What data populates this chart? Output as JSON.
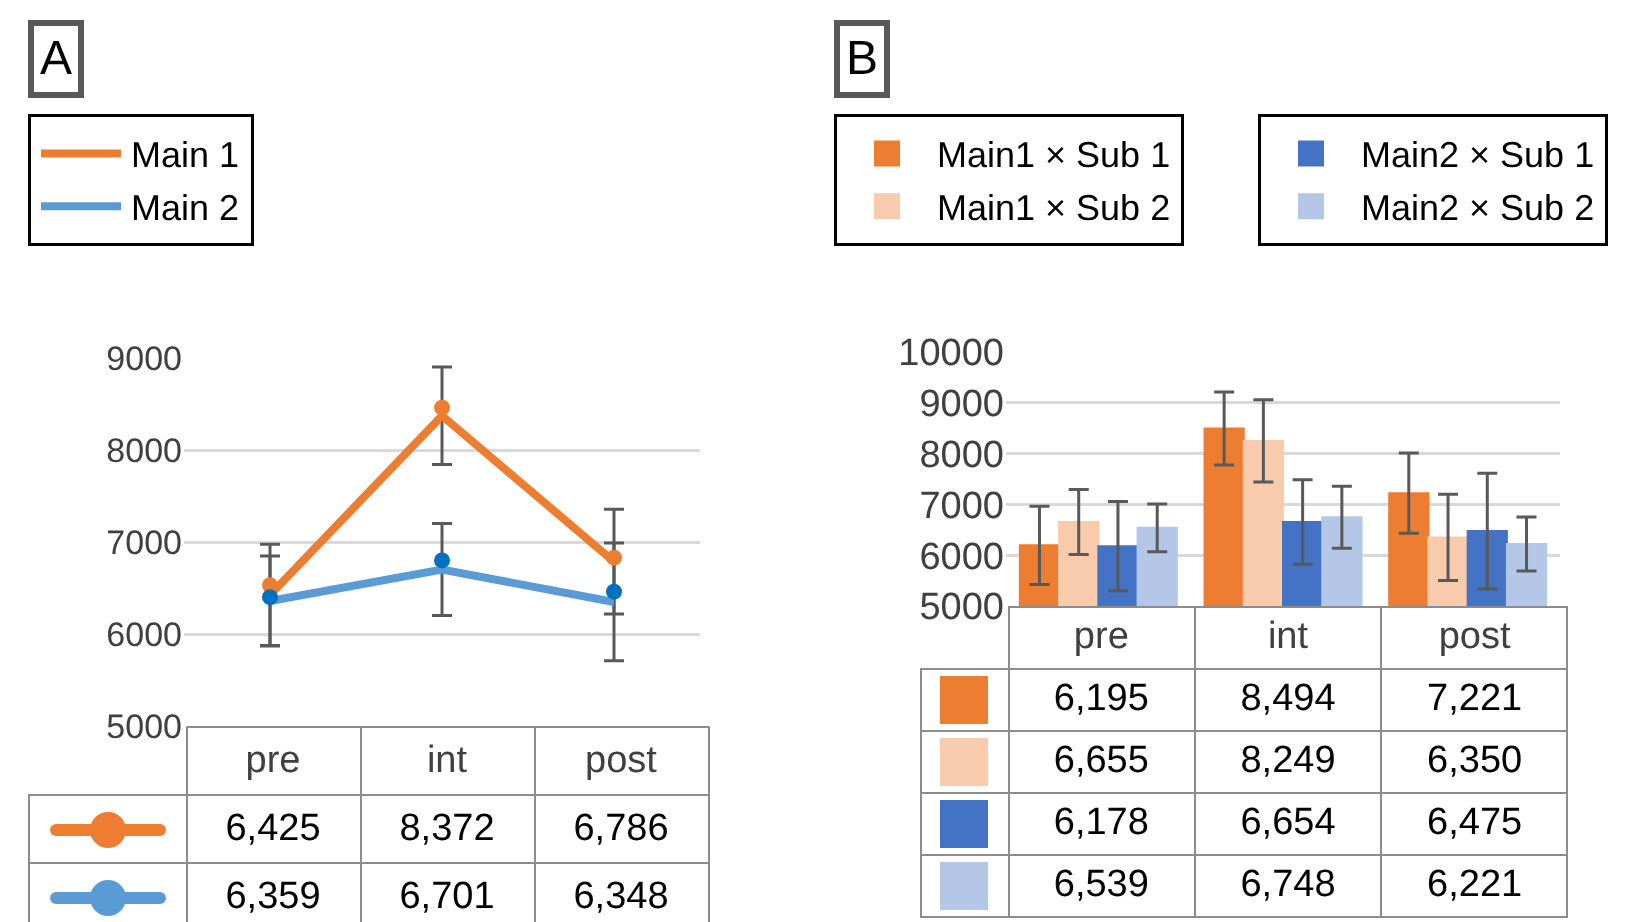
{
  "chart_data": [
    {
      "type": "line",
      "annotations": [
        "A"
      ],
      "categories": [
        "pre",
        "int",
        "post"
      ],
      "series": [
        {
          "name": "Main 1",
          "color": "#ed7d31",
          "values": [
            6425,
            8372,
            6786
          ],
          "value_labels": [
            "6,425",
            "8,372",
            "6,786"
          ],
          "errors": [
            550,
            530,
            570
          ]
        },
        {
          "name": "Main 2",
          "color": "#5b9bd5",
          "values": [
            6359,
            6701,
            6348
          ],
          "value_labels": [
            "6,359",
            "6,701",
            "6,348"
          ],
          "errors": [
            490,
            500,
            640
          ]
        },
        {
          "type": "scatter",
          "color": "#ed7d31",
          "marker": "circle",
          "x": [
            "pre",
            "int",
            "post"
          ],
          "values": [
            6530,
            8460,
            6830
          ]
        },
        {
          "type": "scatter",
          "color": "#0070c0",
          "marker": "circle",
          "x": [
            "pre",
            "int",
            "post"
          ],
          "values": [
            6400,
            6800,
            6460
          ]
        }
      ],
      "ylim": [
        5000,
        9000
      ],
      "yticks": [
        5000,
        6000,
        7000,
        8000,
        9000
      ],
      "grid": "y",
      "legend": "top left",
      "line_style": "solid"
    },
    {
      "type": "bar",
      "annotations": [
        "B"
      ],
      "categories": [
        "pre",
        "int",
        "post"
      ],
      "series": [
        {
          "name": "Main1 × Sub 1",
          "color": "#ed7d31",
          "values": [
            6195,
            8494,
            7221
          ],
          "value_labels": [
            "6,195",
            "8,494",
            "7,221"
          ],
          "errors": [
            770,
            720,
            790
          ]
        },
        {
          "name": "Main1 × Sub 2",
          "color": "#f8cbad",
          "values": [
            6655,
            8249,
            6350
          ],
          "value_labels": [
            "6,655",
            "8,249",
            "6,350"
          ],
          "errors": [
            640,
            810,
            850
          ]
        },
        {
          "name": "Main2 × Sub 1",
          "color": "#4472c4",
          "values": [
            6178,
            6654,
            6475
          ],
          "value_labels": [
            "6,178",
            "6,654",
            "6,475"
          ],
          "errors": [
            880,
            830,
            1140
          ]
        },
        {
          "name": "Main2 × Sub 2",
          "color": "#b4c7e7",
          "values": [
            6539,
            6748,
            6221
          ],
          "value_labels": [
            "6,539",
            "6,748",
            "6,221"
          ],
          "errors": [
            470,
            610,
            530
          ]
        }
      ],
      "ylim": [
        5000,
        10000
      ],
      "yticks": [
        5000,
        6000,
        7000,
        8000,
        9000,
        10000
      ],
      "grid": "y",
      "legend": "top left"
    }
  ]
}
